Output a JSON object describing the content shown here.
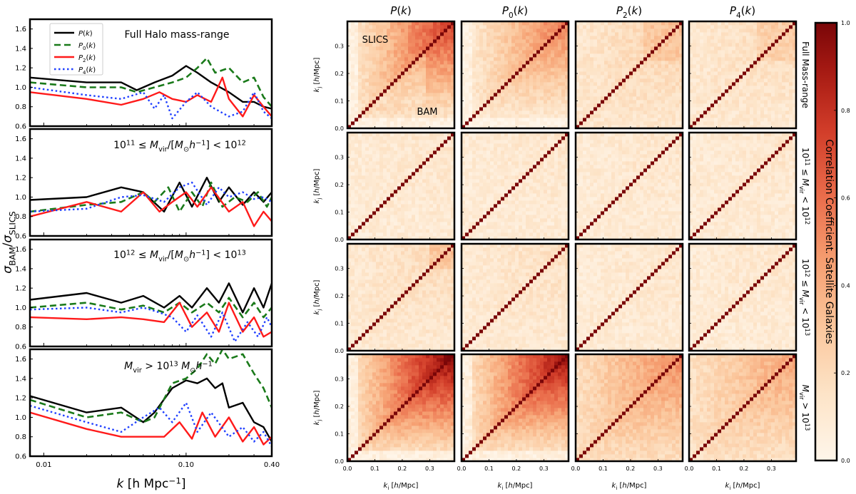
{
  "chart_data": [
    {
      "type": "line",
      "panel_group": "left",
      "xlabel": "k [h Mpc^-1]",
      "ylabel": "σBAM/σSLICS",
      "xscale": "log",
      "xlim": [
        0.008,
        0.4
      ],
      "ylim": [
        0.6,
        1.7
      ],
      "xticks": [
        "0.01",
        "0.10",
        "0.40"
      ],
      "yticks": [
        "0.6",
        "0.8",
        "1.0",
        "1.2",
        "1.4",
        "1.6"
      ],
      "legend": [
        "P(k)",
        "P0(k)",
        "P2(k)",
        "P4(k)"
      ],
      "panels": [
        {
          "title": "Full Halo mass-range",
          "series": [
            {
              "name": "P(k)",
              "x": [
                0.008,
                0.02,
                0.035,
                0.045,
                0.06,
                0.08,
                0.1,
                0.12,
                0.15,
                0.2,
                0.25,
                0.3,
                0.35,
                0.4
              ],
              "y": [
                1.1,
                1.05,
                1.05,
                0.97,
                1.05,
                1.12,
                1.22,
                1.15,
                1.05,
                0.95,
                0.85,
                0.85,
                0.8,
                0.78
              ]
            },
            {
              "name": "P0(k)",
              "x": [
                0.008,
                0.02,
                0.035,
                0.045,
                0.06,
                0.08,
                0.1,
                0.12,
                0.14,
                0.16,
                0.2,
                0.25,
                0.3,
                0.35,
                0.4
              ],
              "y": [
                1.05,
                1.0,
                1.0,
                0.95,
                1.0,
                1.05,
                1.1,
                1.2,
                1.3,
                1.15,
                1.2,
                1.05,
                1.1,
                0.9,
                0.8
              ]
            },
            {
              "name": "P2(k)",
              "x": [
                0.008,
                0.02,
                0.035,
                0.05,
                0.065,
                0.08,
                0.1,
                0.12,
                0.15,
                0.18,
                0.2,
                0.25,
                0.3,
                0.35,
                0.4
              ],
              "y": [
                0.95,
                0.88,
                0.82,
                0.88,
                0.95,
                0.88,
                0.85,
                0.92,
                0.85,
                1.1,
                0.88,
                0.7,
                0.92,
                0.8,
                0.7
              ]
            },
            {
              "name": "P4(k)",
              "x": [
                0.008,
                0.02,
                0.035,
                0.05,
                0.06,
                0.07,
                0.08,
                0.1,
                0.12,
                0.15,
                0.2,
                0.25,
                0.3,
                0.35,
                0.4
              ],
              "y": [
                1.0,
                0.92,
                0.88,
                0.95,
                0.78,
                0.92,
                0.68,
                0.85,
                0.95,
                0.8,
                0.7,
                0.75,
                0.95,
                0.75,
                0.68
              ]
            }
          ]
        },
        {
          "title": "10^11 ≤ Mvir/[M⊙h^-1] < 10^12",
          "series": [
            {
              "name": "P(k)",
              "x": [
                0.008,
                0.02,
                0.035,
                0.05,
                0.07,
                0.09,
                0.11,
                0.14,
                0.17,
                0.2,
                0.25,
                0.3,
                0.35,
                0.4
              ],
              "y": [
                0.97,
                1.0,
                1.1,
                1.05,
                0.85,
                1.15,
                0.9,
                1.2,
                0.95,
                1.1,
                0.92,
                1.05,
                0.95,
                1.05
              ]
            },
            {
              "name": "P0(k)",
              "x": [
                0.008,
                0.02,
                0.035,
                0.05,
                0.06,
                0.075,
                0.09,
                0.11,
                0.13,
                0.15,
                0.18,
                0.22,
                0.27,
                0.32,
                0.37,
                0.4
              ],
              "y": [
                0.85,
                0.92,
                0.95,
                1.05,
                0.95,
                1.1,
                0.85,
                1.05,
                0.9,
                1.15,
                0.9,
                1.0,
                0.95,
                1.05,
                0.9,
                1.0
              ]
            },
            {
              "name": "P2(k)",
              "x": [
                0.008,
                0.02,
                0.035,
                0.05,
                0.065,
                0.08,
                0.1,
                0.12,
                0.15,
                0.2,
                0.25,
                0.3,
                0.35,
                0.4
              ],
              "y": [
                0.8,
                0.95,
                0.85,
                1.05,
                0.85,
                0.95,
                1.05,
                0.9,
                1.1,
                0.85,
                0.95,
                0.7,
                0.85,
                0.75
              ]
            },
            {
              "name": "P4(k)",
              "x": [
                0.008,
                0.02,
                0.035,
                0.05,
                0.07,
                0.09,
                0.11,
                0.14,
                0.17,
                0.2,
                0.25,
                0.3,
                0.35,
                0.4
              ],
              "y": [
                0.85,
                0.88,
                1.0,
                1.02,
                0.95,
                1.1,
                1.15,
                0.92,
                1.1,
                1.0,
                1.05,
                0.98,
                1.0,
                0.95
              ]
            }
          ]
        },
        {
          "title": "10^12 ≤ Mvir/[M⊙h^-1] < 10^13",
          "series": [
            {
              "name": "P(k)",
              "x": [
                0.008,
                0.02,
                0.035,
                0.05,
                0.07,
                0.09,
                0.11,
                0.14,
                0.17,
                0.2,
                0.25,
                0.3,
                0.35,
                0.4
              ],
              "y": [
                1.08,
                1.15,
                1.05,
                1.12,
                1.0,
                1.12,
                1.0,
                1.2,
                1.05,
                1.25,
                0.95,
                1.2,
                1.0,
                1.25
              ]
            },
            {
              "name": "P0(k)",
              "x": [
                0.008,
                0.02,
                0.035,
                0.05,
                0.07,
                0.09,
                0.11,
                0.14,
                0.17,
                0.2,
                0.25,
                0.3,
                0.35,
                0.4
              ],
              "y": [
                1.0,
                1.05,
                0.98,
                1.02,
                0.95,
                1.05,
                0.95,
                1.05,
                0.95,
                1.1,
                0.9,
                1.05,
                0.9,
                1.0
              ]
            },
            {
              "name": "P2(k)",
              "x": [
                0.008,
                0.02,
                0.035,
                0.05,
                0.07,
                0.09,
                0.11,
                0.14,
                0.17,
                0.2,
                0.25,
                0.3,
                0.35,
                0.4
              ],
              "y": [
                0.9,
                0.88,
                0.9,
                0.88,
                0.85,
                1.05,
                0.8,
                0.95,
                0.75,
                1.05,
                0.75,
                0.9,
                0.7,
                0.75
              ]
            },
            {
              "name": "P4(k)",
              "x": [
                0.008,
                0.02,
                0.035,
                0.05,
                0.065,
                0.08,
                0.1,
                0.12,
                0.15,
                0.18,
                0.22,
                0.27,
                0.32,
                0.37,
                0.4
              ],
              "y": [
                0.98,
                1.0,
                0.95,
                1.0,
                0.95,
                0.9,
                0.75,
                0.92,
                0.7,
                0.95,
                0.65,
                0.85,
                0.7,
                0.9,
                0.8
              ]
            }
          ]
        },
        {
          "title": "Mvir > 10^13 M⊙h^-1",
          "series": [
            {
              "name": "P(k)",
              "x": [
                0.008,
                0.02,
                0.035,
                0.05,
                0.06,
                0.08,
                0.1,
                0.12,
                0.14,
                0.16,
                0.18,
                0.2,
                0.25,
                0.3,
                0.35,
                0.4
              ],
              "y": [
                1.22,
                1.05,
                1.1,
                0.95,
                1.05,
                1.3,
                1.38,
                1.35,
                1.4,
                1.3,
                1.35,
                1.1,
                1.15,
                0.95,
                0.9,
                0.75
              ]
            },
            {
              "name": "P0(k)",
              "x": [
                0.008,
                0.02,
                0.035,
                0.05,
                0.06,
                0.08,
                0.1,
                0.12,
                0.14,
                0.16,
                0.18,
                0.2,
                0.25,
                0.3,
                0.35,
                0.4
              ],
              "y": [
                1.18,
                1.0,
                1.05,
                0.95,
                1.0,
                1.35,
                1.4,
                1.5,
                1.65,
                1.55,
                1.7,
                1.6,
                1.65,
                1.45,
                1.3,
                1.1
              ]
            },
            {
              "name": "P2(k)",
              "x": [
                0.008,
                0.02,
                0.035,
                0.05,
                0.07,
                0.09,
                0.11,
                0.13,
                0.16,
                0.2,
                0.25,
                0.3,
                0.35,
                0.4
              ],
              "y": [
                1.05,
                0.88,
                0.8,
                0.8,
                0.8,
                0.95,
                0.78,
                1.05,
                0.8,
                1.0,
                0.75,
                0.9,
                0.72,
                0.8
              ]
            },
            {
              "name": "P4(k)",
              "x": [
                0.008,
                0.02,
                0.035,
                0.05,
                0.065,
                0.08,
                0.1,
                0.12,
                0.15,
                0.2,
                0.25,
                0.3,
                0.35,
                0.4
              ],
              "y": [
                1.12,
                0.95,
                0.85,
                1.0,
                1.1,
                0.95,
                1.15,
                0.85,
                1.05,
                0.8,
                0.9,
                0.75,
                0.85,
                0.7
              ]
            }
          ]
        }
      ]
    },
    {
      "type": "heatmap",
      "panel_group": "right",
      "title": "",
      "col_titles": [
        "P(k)",
        "P0(k)",
        "P2(k)",
        "P4(k)"
      ],
      "row_titles": [
        "Full Mass-range",
        "10^11 ≤ Mvir < 10^12",
        "10^12 ≤ Mvir < 10^13",
        "Mvir > 10^13"
      ],
      "xlabel": "ki [h/Mpc]",
      "ylabel": "kj [h/Mpc]",
      "xlim": [
        0.0,
        0.39
      ],
      "ylim": [
        0.0,
        0.39
      ],
      "xticks": [
        "0.0",
        "0.1",
        "0.2",
        "0.3"
      ],
      "yticks": [
        "0.0",
        "0.1",
        "0.2",
        "0.3"
      ],
      "bins": 30,
      "upper_triangle": "SLICS",
      "lower_triangle": "BAM",
      "colorbar_label": "Correlation Coefficient. Satellite Galaxies",
      "colorbar_range": [
        0.0,
        1.0
      ],
      "colorbar_ticks": [
        "0.0",
        "0.2",
        "0.4",
        "0.6",
        "0.8",
        "1.0"
      ],
      "mean_offdiagonal_correlation": [
        [
          0.55,
          0.4,
          0.15,
          0.12
        ],
        [
          0.08,
          0.08,
          0.08,
          0.08
        ],
        [
          0.12,
          0.1,
          0.08,
          0.08
        ],
        [
          0.75,
          0.7,
          0.3,
          0.25
        ]
      ]
    }
  ],
  "labels": {
    "left_xlabel": "k",
    "left_xlabel_unit": "[h Mpc",
    "left_xlabel_unit_exp": "−1",
    "left_xlabel_unit_close": "]",
    "left_ylabel": "σBAM/σSLICS",
    "annot_slics": "SLICS",
    "annot_bam": "BAM"
  }
}
